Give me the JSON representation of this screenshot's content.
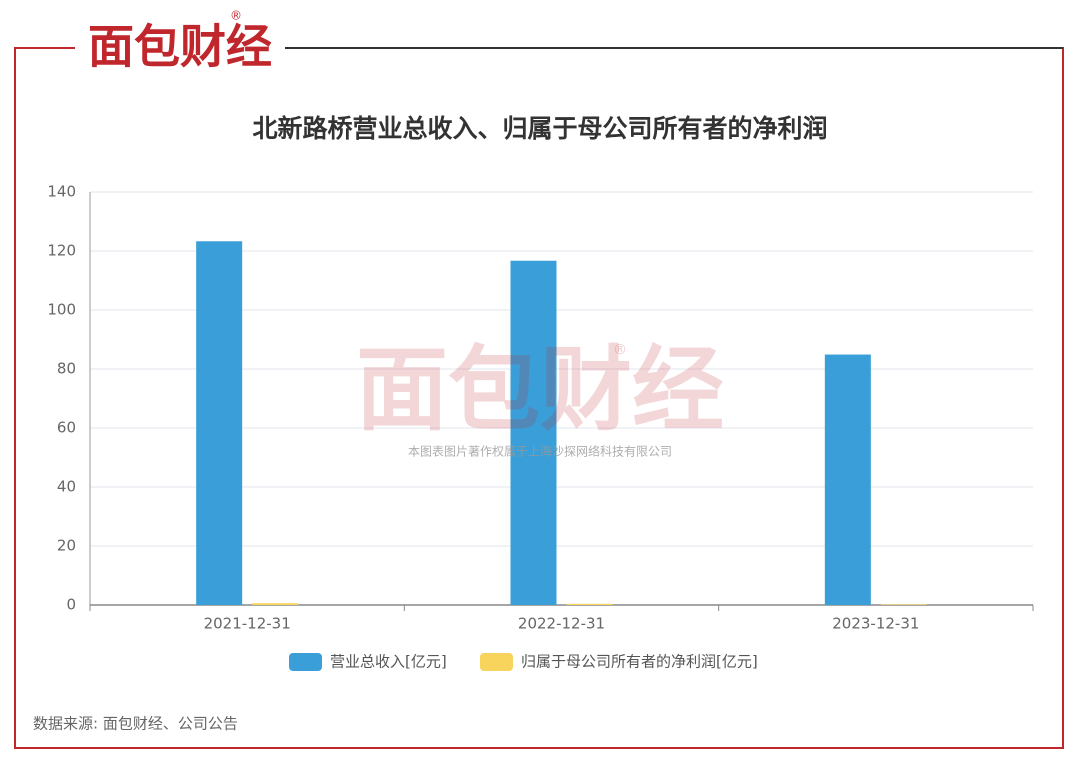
{
  "chart_data": {
    "type": "bar",
    "logo": "面包财经",
    "logo_mark": "®",
    "title": "北新路桥营业总收入、归属于母公司所有者的净利润",
    "watermark": "本图表图片著作权属于上海沙探网络科技有限公司",
    "categories": [
      "2021-12-31",
      "2022-12-31",
      "2023-12-31"
    ],
    "series": [
      {
        "name": "营业总收入[亿元]",
        "color": "#3a9fd8",
        "values": [
          123.3,
          116.7,
          84.9
        ]
      },
      {
        "name": "归属于母公司所有者的净利润[亿元]",
        "color": "#f9d45c",
        "values": [
          0.6,
          0.4,
          0.2
        ]
      }
    ],
    "ylim": [
      0,
      140
    ],
    "yticks": [
      0,
      20,
      40,
      60,
      80,
      100,
      120,
      140
    ],
    "grid": true,
    "legend": "bottom",
    "source": "数据来源: 面包财经、公司公告"
  }
}
